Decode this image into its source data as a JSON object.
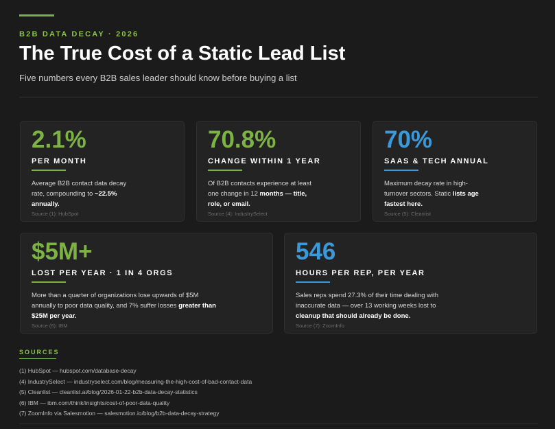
{
  "header": {
    "eyebrow": "B2B DATA DECAY · 2026",
    "title": "The True Cost of a Static Lead List",
    "subtitle": "Five numbers every B2B sales leader should know before buying a list"
  },
  "stats": [
    {
      "value": "2.1%",
      "label": "PER MONTH",
      "desc_plain": "Average B2B contact data decay rate, compounding to",
      "desc_bold": "~22.5% annually.",
      "source": "Source (1): HubSpot",
      "color": "#7cb342"
    },
    {
      "value": "70.8%",
      "label": "CHANGE WITHIN 1 YEAR",
      "desc_plain": "Of B2B contacts experience at least one change in 12",
      "desc_bold": "months — title, role, or email.",
      "source": "Source (4): IndustrySelect",
      "color": "#7cb342"
    },
    {
      "value": "70%",
      "label": "SAAS & TECH ANNUAL",
      "desc_plain": "Maximum decay rate in high-turnover sectors. Static",
      "desc_bold": "lists age fastest here.",
      "source": "Source (5): Cleanlist",
      "color": "#3a9ad9"
    },
    {
      "value": "$5M+",
      "label": "LOST PER YEAR · 1 IN 4 ORGS",
      "desc_plain": "More than a quarter of organizations lose upwards of $5M annually to poor data quality, and 7% suffer losses",
      "desc_bold": "greater than $25M per year.",
      "source": "Source (6): IBM",
      "color": "#7cb342"
    },
    {
      "value": "546",
      "label": "HOURS PER REP, PER YEAR",
      "desc_plain": "Sales reps spend 27.3% of their time dealing with inaccurate data — over 13 working weeks lost to",
      "desc_bold": "cleanup that should already be done.",
      "source": "Source (7): ZoomInfo",
      "color": "#3a9ad9"
    }
  ],
  "sources": {
    "heading": "SOURCES",
    "items": [
      "(1) HubSpot — hubspot.com/database-decay",
      "(4) IndustrySelect — industryselect.com/blog/measuring-the-high-cost-of-bad-contact-data",
      "(5) Cleanlist — cleanlist.ai/blog/2026-01-22-b2b-data-decay-statistics",
      "(6) IBM — ibm.com/think/insights/cost-of-poor-data-quality",
      "(7) ZoomInfo via Salesmotion — salesmotion.io/blog/b2b-data-decay-strategy"
    ]
  }
}
